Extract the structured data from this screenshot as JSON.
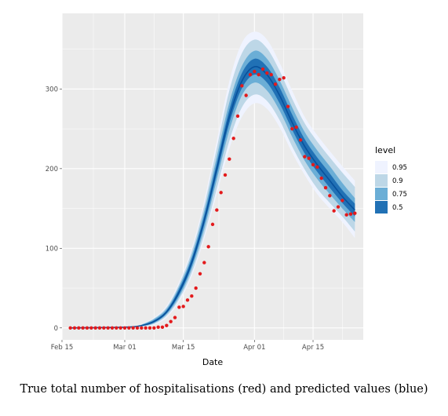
{
  "chart_data": {
    "type": "line",
    "xlabel": "Date",
    "ylabel": "",
    "x_ticks": [
      "Feb 15",
      "Mar 01",
      "Mar 15",
      "Apr 01",
      "Apr 15"
    ],
    "y_ticks": [
      0,
      100,
      200,
      300
    ],
    "xlim": [
      "2020-02-15",
      "2020-04-27"
    ],
    "ylim": [
      -15,
      395
    ],
    "grid": true,
    "legend": {
      "title": "level",
      "placement": "right",
      "entries": [
        {
          "label": "0.95",
          "color": "#eff3ff"
        },
        {
          "label": "0.9",
          "color": "#bdd7e7"
        },
        {
          "label": "0.75",
          "color": "#6baed6"
        },
        {
          "label": "0.5",
          "color": "#2171b5"
        }
      ]
    },
    "colors": {
      "panel": "#ebebeb",
      "grid": "#ffffff",
      "observed": "#e31a1c",
      "median": "#08519c"
    },
    "median": {
      "x": [
        "2020-02-17",
        "2020-03-01",
        "2020-03-05",
        "2020-03-08",
        "2020-03-11",
        "2020-03-14",
        "2020-03-17",
        "2020-03-20",
        "2020-03-23",
        "2020-03-26",
        "2020-03-29",
        "2020-04-01",
        "2020-04-04",
        "2020-04-07",
        "2020-04-10",
        "2020-04-13",
        "2020-04-16",
        "2020-04-19",
        "2020-04-22",
        "2020-04-25"
      ],
      "y": [
        0,
        1,
        3,
        8,
        20,
        45,
        82,
        135,
        200,
        265,
        310,
        328,
        318,
        292,
        258,
        228,
        205,
        185,
        165,
        148
      ]
    },
    "bands": [
      {
        "level": "0.95",
        "color": "#eff3ff",
        "x": [
          "2020-03-05",
          "2020-03-08",
          "2020-03-11",
          "2020-03-14",
          "2020-03-17",
          "2020-03-20",
          "2020-03-23",
          "2020-03-26",
          "2020-03-29",
          "2020-04-01",
          "2020-04-04",
          "2020-04-07",
          "2020-04-10",
          "2020-04-13",
          "2020-04-16",
          "2020-04-19",
          "2020-04-22",
          "2020-04-25"
        ],
        "lower": [
          1,
          4,
          13,
          33,
          65,
          112,
          168,
          225,
          265,
          282,
          275,
          252,
          220,
          192,
          168,
          150,
          133,
          113
        ],
        "upper": [
          5,
          13,
          28,
          58,
          100,
          160,
          235,
          310,
          358,
          372,
          362,
          333,
          298,
          265,
          242,
          222,
          203,
          185
        ]
      },
      {
        "level": "0.9",
        "color": "#bdd7e7",
        "x": [
          "2020-03-05",
          "2020-03-08",
          "2020-03-11",
          "2020-03-14",
          "2020-03-17",
          "2020-03-20",
          "2020-03-23",
          "2020-03-26",
          "2020-03-29",
          "2020-04-01",
          "2020-04-04",
          "2020-04-07",
          "2020-04-10",
          "2020-04-13",
          "2020-04-16",
          "2020-04-19",
          "2020-04-22",
          "2020-04-25"
        ],
        "lower": [
          1.5,
          5,
          15,
          36,
          69,
          117,
          175,
          235,
          277,
          293,
          285,
          261,
          228,
          199,
          175,
          157,
          140,
          121
        ],
        "upper": [
          4.5,
          12,
          26,
          55,
          96,
          154,
          226,
          298,
          345,
          362,
          351,
          323,
          288,
          257,
          234,
          214,
          195,
          177
        ]
      },
      {
        "level": "0.75",
        "color": "#6baed6",
        "x": [
          "2020-03-05",
          "2020-03-08",
          "2020-03-11",
          "2020-03-14",
          "2020-03-17",
          "2020-03-20",
          "2020-03-23",
          "2020-03-26",
          "2020-03-29",
          "2020-04-01",
          "2020-04-04",
          "2020-04-07",
          "2020-04-10",
          "2020-04-13",
          "2020-04-16",
          "2020-04-19",
          "2020-04-22",
          "2020-04-25"
        ],
        "lower": [
          2,
          6,
          17,
          39,
          74,
          124,
          186,
          248,
          292,
          308,
          298,
          273,
          240,
          210,
          187,
          168,
          150,
          133
        ],
        "upper": [
          4,
          11,
          24,
          52,
          91,
          147,
          215,
          283,
          329,
          348,
          338,
          311,
          277,
          246,
          223,
          203,
          182,
          163
        ]
      },
      {
        "level": "0.5",
        "color": "#2171b5",
        "x": [
          "2020-03-05",
          "2020-03-08",
          "2020-03-11",
          "2020-03-14",
          "2020-03-17",
          "2020-03-20",
          "2020-03-23",
          "2020-03-26",
          "2020-03-29",
          "2020-04-01",
          "2020-04-04",
          "2020-04-07",
          "2020-04-10",
          "2020-04-13",
          "2020-04-16",
          "2020-04-19",
          "2020-04-22",
          "2020-04-25"
        ],
        "lower": [
          2.5,
          7,
          18.5,
          42,
          78,
          130,
          193,
          257,
          301,
          318,
          308,
          282,
          249,
          219,
          196,
          176,
          157,
          140
        ],
        "upper": [
          3.5,
          9.5,
          22,
          49,
          87,
          141,
          207,
          274,
          320,
          338,
          328,
          302,
          268,
          237,
          214,
          194,
          173,
          156
        ]
      }
    ],
    "observed": {
      "x": [
        "2020-02-17",
        "2020-02-18",
        "2020-02-19",
        "2020-02-20",
        "2020-02-21",
        "2020-02-22",
        "2020-02-23",
        "2020-02-24",
        "2020-02-25",
        "2020-02-26",
        "2020-02-27",
        "2020-02-28",
        "2020-02-29",
        "2020-03-01",
        "2020-03-02",
        "2020-03-03",
        "2020-03-04",
        "2020-03-05",
        "2020-03-06",
        "2020-03-07",
        "2020-03-08",
        "2020-03-09",
        "2020-03-10",
        "2020-03-11",
        "2020-03-12",
        "2020-03-13",
        "2020-03-14",
        "2020-03-15",
        "2020-03-16",
        "2020-03-17",
        "2020-03-18",
        "2020-03-19",
        "2020-03-20",
        "2020-03-21",
        "2020-03-22",
        "2020-03-23",
        "2020-03-24",
        "2020-03-25",
        "2020-03-26",
        "2020-03-27",
        "2020-03-28",
        "2020-03-29",
        "2020-03-30",
        "2020-03-31",
        "2020-04-01",
        "2020-04-02",
        "2020-04-03",
        "2020-04-04",
        "2020-04-05",
        "2020-04-06",
        "2020-04-07",
        "2020-04-08",
        "2020-04-09",
        "2020-04-10",
        "2020-04-11",
        "2020-04-12",
        "2020-04-13",
        "2020-04-14",
        "2020-04-15",
        "2020-04-16",
        "2020-04-17",
        "2020-04-18",
        "2020-04-19",
        "2020-04-20",
        "2020-04-21",
        "2020-04-22",
        "2020-04-23",
        "2020-04-24",
        "2020-04-25"
      ],
      "y": [
        0,
        0,
        0,
        0,
        0,
        0,
        0,
        0,
        0,
        0,
        0,
        0,
        0,
        0,
        0,
        0,
        0,
        0,
        0,
        0,
        0,
        1,
        1,
        3,
        8,
        13,
        26,
        27,
        35,
        40,
        50,
        68,
        82,
        102,
        130,
        148,
        170,
        192,
        212,
        238,
        266,
        304,
        292,
        318,
        322,
        318,
        325,
        320,
        318,
        306,
        312,
        314,
        278,
        250,
        252,
        236,
        215,
        213,
        205,
        202,
        188,
        176,
        166,
        147,
        152,
        160,
        142,
        143,
        144
      ]
    }
  },
  "caption": "True total number of hospitalisations (red) and predicted values (blue)"
}
